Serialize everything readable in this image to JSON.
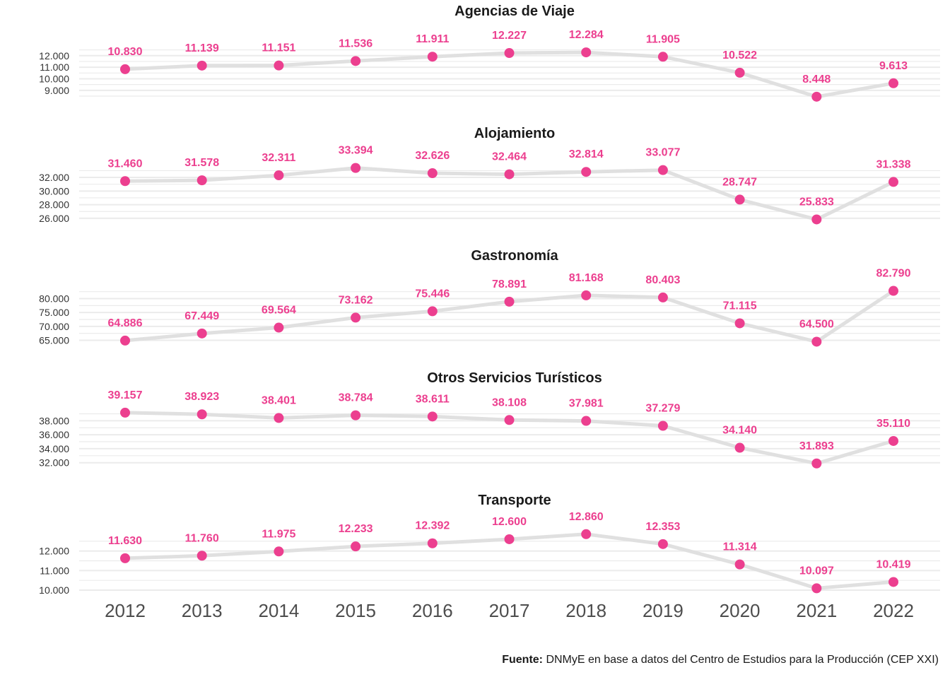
{
  "colors": {
    "accent": "#ec3f8f",
    "line": "#e0e0e0",
    "grid": "#ebebeb"
  },
  "chart_data": {
    "type": "line",
    "x": [
      "2012",
      "2013",
      "2014",
      "2015",
      "2016",
      "2017",
      "2018",
      "2019",
      "2020",
      "2021",
      "2022"
    ],
    "panels": [
      {
        "title": "Agencias de Viaje",
        "values": [
          10830,
          11139,
          11151,
          11536,
          11911,
          12227,
          12284,
          11905,
          10522,
          8448,
          9613
        ],
        "labels": [
          "10.830",
          "11.139",
          "11.151",
          "11.536",
          "11.911",
          "12.227",
          "12.284",
          "11.905",
          "10.522",
          "8.448",
          "9.613"
        ],
        "yticks": [
          9000,
          10000,
          11000,
          12000
        ],
        "ytick_labels": [
          "9.000",
          "10.000",
          "11.000",
          "12.000"
        ],
        "ylim": [
          7950,
          13330
        ]
      },
      {
        "title": "Alojamiento",
        "values": [
          31460,
          31578,
          32311,
          33394,
          32626,
          32464,
          32814,
          33077,
          28747,
          25833,
          31338
        ],
        "labels": [
          "31.460",
          "31.578",
          "32.311",
          "33.394",
          "32.626",
          "32.464",
          "32.814",
          "33.077",
          "28.747",
          "25.833",
          "31.338"
        ],
        "yticks": [
          26000,
          28000,
          30000,
          32000
        ],
        "ytick_labels": [
          "26.000",
          "28.000",
          "30.000",
          "32.000"
        ],
        "ylim": [
          25050,
          34290
        ]
      },
      {
        "title": "Gastronomía",
        "values": [
          64886,
          67449,
          69564,
          73162,
          75446,
          78891,
          81168,
          80403,
          71115,
          64500,
          82790
        ],
        "labels": [
          "64.886",
          "67.449",
          "69.564",
          "73.162",
          "75.446",
          "78.891",
          "81.168",
          "80.403",
          "71.115",
          "64.500",
          "82.790"
        ],
        "yticks": [
          65000,
          70000,
          75000,
          80000
        ],
        "ytick_labels": [
          "65.000",
          "70.000",
          "75.000",
          "80.000"
        ],
        "ylim": [
          62580,
          85220
        ]
      },
      {
        "title": "Otros Servicios Turísticos",
        "values": [
          39157,
          38923,
          38401,
          38784,
          38611,
          38108,
          37981,
          37279,
          34140,
          31893,
          35110
        ],
        "labels": [
          "39.157",
          "38.923",
          "38.401",
          "38.784",
          "38.611",
          "38.108",
          "37.981",
          "37.279",
          "34.140",
          "31.893",
          "35.110"
        ],
        "yticks": [
          32000,
          34000,
          36000,
          38000
        ],
        "ytick_labels": [
          "32.000",
          "34.000",
          "36.000",
          "38.000"
        ],
        "ylim": [
          31160,
          40060
        ]
      },
      {
        "title": "Transporte",
        "values": [
          11630,
          11760,
          11975,
          12233,
          12392,
          12600,
          12860,
          12353,
          11314,
          10097,
          10419
        ],
        "labels": [
          "11.630",
          "11.760",
          "11.975",
          "12.233",
          "12.392",
          "12.600",
          "12.860",
          "12.353",
          "11.314",
          "10.097",
          "10.419"
        ],
        "yticks": [
          10000,
          11000,
          12000
        ],
        "ytick_labels": [
          "10.000",
          "11.000",
          "12.000"
        ],
        "ylim": [
          9930,
          13140
        ]
      }
    ],
    "grid": true,
    "legend": "none"
  },
  "source": {
    "label": "Fuente:",
    "text": " DNMyE en base a datos del Centro de Estudios para la Producción (CEP XXI)"
  }
}
